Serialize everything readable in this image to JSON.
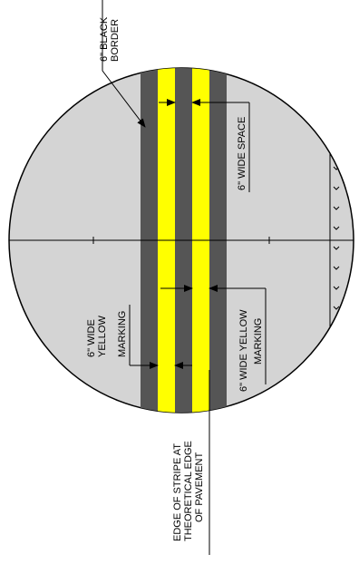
{
  "labels": {
    "border_line1": "6\" BLACK",
    "border_line2": "BORDER",
    "space": "6\" WIDE  SPACE",
    "left_marking_line1": "6\" WIDE",
    "left_marking_line2": "YELLOW",
    "left_marking_line3": "MARKING",
    "right_marking_line1": "6\" WIDE YELLOW",
    "right_marking_line2": "MARKING",
    "edge_line1": "EDGE OF STRIPE AT",
    "edge_line2": "THEORETICAL EDGE",
    "edge_line3": "OF PAVEMENT"
  },
  "colors": {
    "pavement": "#d4d4d4",
    "black_border": "#555555",
    "yellow_marking": "#ffff00",
    "outline": "#000000"
  }
}
